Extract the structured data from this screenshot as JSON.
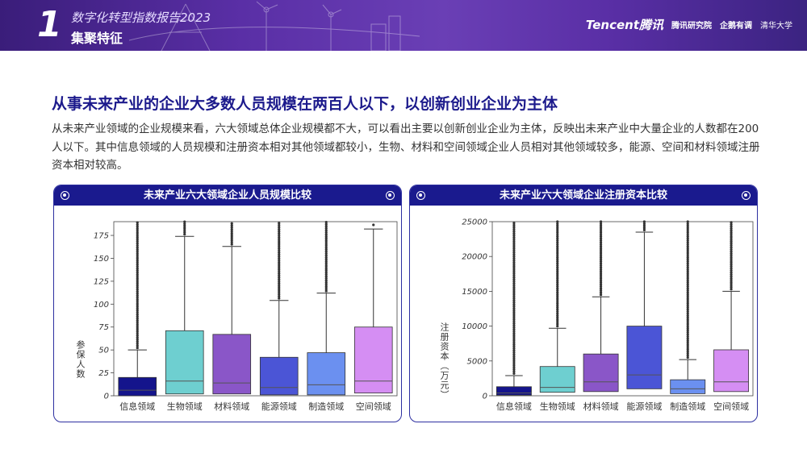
{
  "header": {
    "number": "1",
    "report_title": "数字化转型指数报告2023",
    "section": "集聚特征",
    "logos": [
      "Tencent腾讯",
      "腾讯研究院",
      "企鹅有调",
      "清华大学"
    ]
  },
  "main": {
    "title": "从事未来产业的企业大多数人员规模在两百人以下，以创新创业企业为主体",
    "description": "从未来产业领域的企业规模来看，六大领域总体企业规模都不大，可以看出主要以创新创业企业为主体，反映出未来产业中大量企业的人数都在200人以下。其中信息领域的人员规模和注册资本相对其他领域都较小，生物、材料和空间领域企业人员相对其他领域较多，能源、空间和材料领域注册资本相对较高。"
  },
  "colors": {
    "header_bg": "#4b2795",
    "panel_header": "#1a1a8e",
    "boxes": [
      "#14148c",
      "#6ecfd0",
      "#8a56c8",
      "#4b55d6",
      "#6b90f0",
      "#d58ef3"
    ]
  },
  "chart_data": [
    {
      "type": "box",
      "title": "未来产业六大领域企业人员规模比较",
      "ylabel": "参保人数",
      "xlabel": "",
      "ylim": [
        0,
        190
      ],
      "yticks": [
        0,
        25,
        50,
        75,
        100,
        125,
        150,
        175
      ],
      "categories": [
        "信息领域",
        "生物领域",
        "材料领域",
        "能源领域",
        "制造领域",
        "空间领域"
      ],
      "boxes": [
        {
          "q1": 0,
          "median": 6,
          "q3": 20,
          "whisker_high": 50
        },
        {
          "q1": 2,
          "median": 16,
          "q3": 71,
          "whisker_high": 174
        },
        {
          "q1": 2,
          "median": 14,
          "q3": 67,
          "whisker_high": 163
        },
        {
          "q1": 1,
          "median": 9,
          "q3": 42,
          "whisker_high": 104
        },
        {
          "q1": 1,
          "median": 12,
          "q3": 47,
          "whisker_high": 112
        },
        {
          "q1": 3,
          "median": 16,
          "q3": 75,
          "whisker_high": 182
        }
      ],
      "outliers_from": [
        50,
        174,
        163,
        104,
        112,
        null
      ]
    },
    {
      "type": "box",
      "title": "未来产业六大领域企业注册资本比较",
      "ylabel": "注册资本（万元）",
      "xlabel": "",
      "ylim": [
        0,
        25000
      ],
      "yticks": [
        0,
        5000,
        10000,
        15000,
        20000,
        25000
      ],
      "categories": [
        "信息领域",
        "生物领域",
        "材料领域",
        "能源领域",
        "制造领域",
        "空间领域"
      ],
      "boxes": [
        {
          "q1": 100,
          "median": 400,
          "q3": 1300,
          "whisker_high": 2900
        },
        {
          "q1": 500,
          "median": 1200,
          "q3": 4200,
          "whisker_high": 9700
        },
        {
          "q1": 600,
          "median": 2000,
          "q3": 6000,
          "whisker_high": 14200
        },
        {
          "q1": 1000,
          "median": 3000,
          "q3": 10000,
          "whisker_high": 23500
        },
        {
          "q1": 300,
          "median": 1000,
          "q3": 2300,
          "whisker_high": 5200
        },
        {
          "q1": 600,
          "median": 2000,
          "q3": 6600,
          "whisker_high": 15000
        }
      ],
      "outliers_from": [
        2900,
        9700,
        14200,
        23500,
        5200,
        15000
      ]
    }
  ]
}
